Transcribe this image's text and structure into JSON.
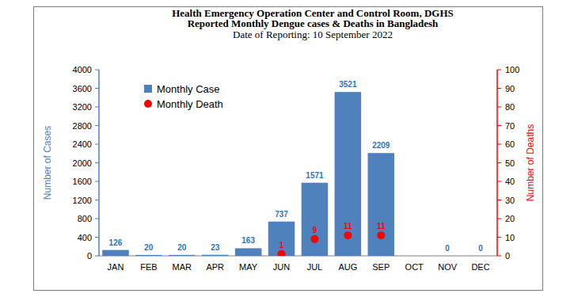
{
  "chart_data": {
    "type": "bar",
    "title": "Health Emergency Operation Center and Control Room, DGHS",
    "subtitle": "Reported Monthly Dengue cases & Deaths in Bangladesh",
    "annotation": "Date of Reporting: 10 September 2022",
    "y_label": "Number of Cases",
    "y2_label": "Number of Deaths",
    "categories": [
      "JAN",
      "FEB",
      "MAR",
      "APR",
      "MAY",
      "JUN",
      "JUL",
      "AUG",
      "SEP",
      "OCT",
      "NOV",
      "DEC"
    ],
    "series": [
      {
        "name": "Monthly Case",
        "type": "bar",
        "color": "#4f81bd",
        "values": [
          126,
          20,
          20,
          23,
          163,
          737,
          1571,
          3521,
          2209,
          null,
          0,
          0
        ]
      },
      {
        "name": "Monthly Death",
        "type": "scatter",
        "axis": "y2",
        "color": "#ff0000",
        "marker": "circle",
        "values": [
          null,
          null,
          null,
          null,
          null,
          1,
          9,
          11,
          11,
          null,
          null,
          null
        ]
      }
    ],
    "ylim": [
      0,
      4000
    ],
    "yticks": [
      0,
      400,
      800,
      1200,
      1600,
      2000,
      2400,
      2800,
      3200,
      3600,
      4000
    ],
    "y2lim": [
      0,
      100
    ],
    "y2ticks": [
      0,
      10,
      20,
      30,
      40,
      50,
      60,
      70,
      80,
      90,
      100
    ],
    "grid": false,
    "legend": "upper left",
    "data_labels": true
  }
}
